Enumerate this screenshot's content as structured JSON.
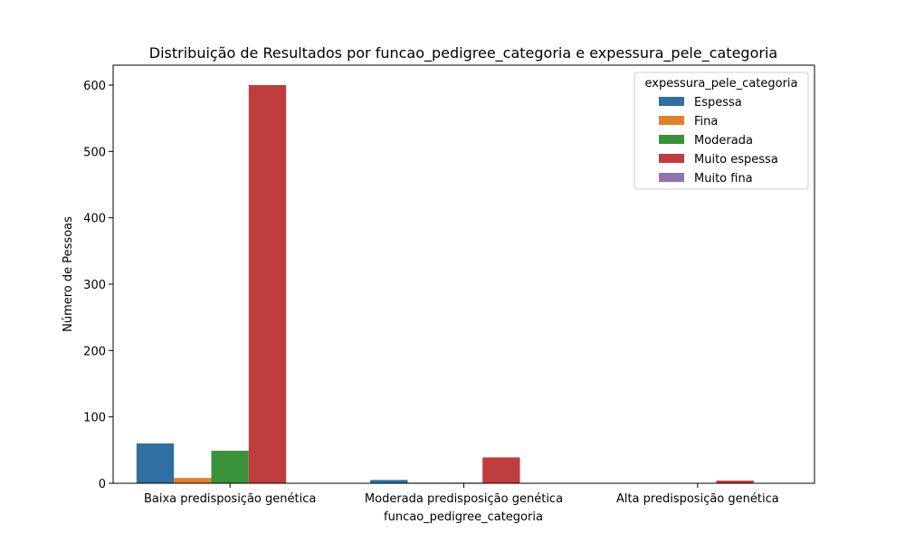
{
  "chart_data": {
    "type": "bar",
    "title": "Distribuição de Resultados por funcao_pedigree_categoria e expessura_pele_categoria",
    "xlabel": "funcao_pedigree_categoria",
    "ylabel": "Número de Pessoas",
    "categories": [
      "Baixa predisposição genética",
      "Moderada predisposição genética",
      "Alta predisposição genética"
    ],
    "ylim": [
      0,
      630
    ],
    "yticks": [
      0,
      100,
      200,
      300,
      400,
      500,
      600
    ],
    "legend": {
      "title": "expessura_pele_categoria",
      "position": "top-right"
    },
    "series": [
      {
        "name": "Espessa",
        "color": "#2f6fa2",
        "values": [
          60,
          5,
          0
        ]
      },
      {
        "name": "Fina",
        "color": "#e1812c",
        "values": [
          8,
          1,
          0
        ]
      },
      {
        "name": "Moderada",
        "color": "#3a923a",
        "values": [
          49,
          1,
          0
        ]
      },
      {
        "name": "Muito espessa",
        "color": "#c03d3e",
        "values": [
          600,
          39,
          4
        ]
      },
      {
        "name": "Muito fina",
        "color": "#9372b2",
        "values": [
          0,
          0,
          0
        ]
      }
    ]
  }
}
